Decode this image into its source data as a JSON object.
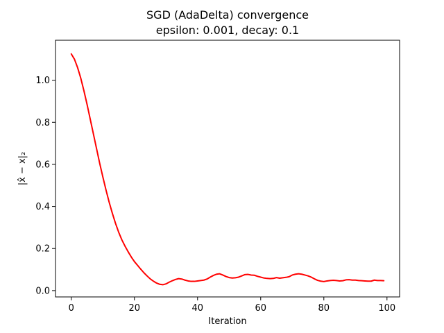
{
  "chart_data": {
    "type": "line",
    "title": "SGD (AdaDelta) convergence",
    "subtitle": "epsilon: 0.001, decay: 0.1",
    "xlabel": "Iteration",
    "ylabel": "|x̂ − x|₂",
    "xlim": [
      -5,
      104
    ],
    "ylim": [
      -0.03,
      1.19
    ],
    "xticks": [
      0,
      20,
      40,
      60,
      80,
      100
    ],
    "yticks": [
      0.0,
      0.2,
      0.4,
      0.6,
      0.8,
      1.0
    ],
    "xtick_labels": [
      "0",
      "20",
      "40",
      "60",
      "80",
      "100"
    ],
    "ytick_labels": [
      "0.0",
      "0.2",
      "0.4",
      "0.6",
      "0.8",
      "1.0"
    ],
    "grid": false,
    "series": [
      {
        "color": "#ff0000",
        "x": [
          0,
          1,
          2,
          3,
          4,
          5,
          6,
          7,
          8,
          9,
          10,
          11,
          12,
          13,
          14,
          15,
          16,
          17,
          18,
          19,
          20,
          21,
          22,
          23,
          24,
          25,
          26,
          27,
          28,
          29,
          30,
          31,
          32,
          33,
          34,
          35,
          36,
          37,
          38,
          39,
          40,
          41,
          42,
          43,
          44,
          45,
          46,
          47,
          48,
          49,
          50,
          51,
          52,
          53,
          54,
          55,
          56,
          57,
          58,
          59,
          60,
          61,
          62,
          63,
          64,
          65,
          66,
          67,
          68,
          69,
          70,
          71,
          72,
          73,
          74,
          75,
          76,
          77,
          78,
          79,
          80,
          81,
          82,
          83,
          84,
          85,
          86,
          87,
          88,
          89,
          90,
          91,
          92,
          93,
          94,
          95,
          96,
          97,
          98,
          99
        ],
        "y": [
          1.125,
          1.1,
          1.06,
          1.01,
          0.95,
          0.885,
          0.815,
          0.745,
          0.675,
          0.605,
          0.54,
          0.478,
          0.42,
          0.368,
          0.32,
          0.278,
          0.242,
          0.212,
          0.185,
          0.16,
          0.138,
          0.12,
          0.102,
          0.085,
          0.07,
          0.056,
          0.045,
          0.036,
          0.03,
          0.028,
          0.032,
          0.04,
          0.047,
          0.053,
          0.057,
          0.055,
          0.05,
          0.046,
          0.044,
          0.044,
          0.046,
          0.048,
          0.05,
          0.055,
          0.064,
          0.072,
          0.078,
          0.08,
          0.074,
          0.067,
          0.062,
          0.06,
          0.061,
          0.064,
          0.07,
          0.076,
          0.077,
          0.074,
          0.073,
          0.068,
          0.064,
          0.06,
          0.058,
          0.057,
          0.058,
          0.062,
          0.059,
          0.061,
          0.063,
          0.066,
          0.074,
          0.078,
          0.08,
          0.078,
          0.074,
          0.07,
          0.064,
          0.056,
          0.049,
          0.045,
          0.043,
          0.046,
          0.048,
          0.049,
          0.048,
          0.046,
          0.047,
          0.051,
          0.052,
          0.05,
          0.05,
          0.048,
          0.047,
          0.046,
          0.045,
          0.045,
          0.05,
          0.048,
          0.048,
          0.047
        ]
      }
    ]
  }
}
